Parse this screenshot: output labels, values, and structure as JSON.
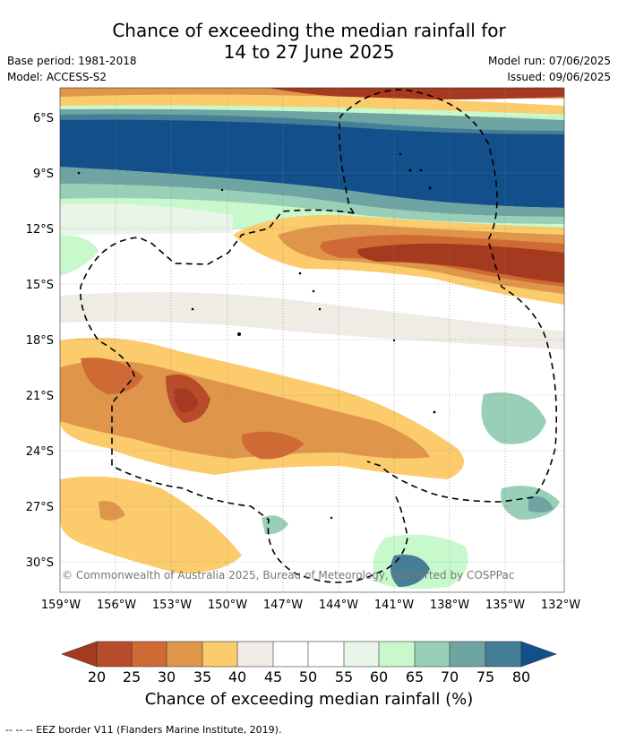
{
  "title": {
    "line1": "Chance of exceeding the median rainfall for",
    "line2": "14 to 27 June 2025"
  },
  "meta_left": {
    "base_period": "Base period: 1981-2018",
    "model": "Model: ACCESS-S2"
  },
  "meta_right": {
    "model_run": "Model run: 07/06/2025",
    "issued": "Issued: 09/06/2025"
  },
  "map": {
    "lat_labels": [
      "6°S",
      "9°S",
      "12°S",
      "15°S",
      "18°S",
      "21°S",
      "24°S",
      "27°S",
      "30°S"
    ],
    "lon_labels": [
      "159°W",
      "156°W",
      "153°W",
      "150°W",
      "147°W",
      "144°W",
      "141°W",
      "138°W",
      "135°W",
      "132°W"
    ],
    "copyright": "© Commonwealth of Australia 2025, Bureau of Meteorology, supported by COSPPac",
    "gridlines": true
  },
  "colorbar": {
    "title": "Chance of exceeding median rainfall (%)",
    "ticks": [
      "20",
      "25",
      "30",
      "35",
      "40",
      "45",
      "50",
      "55",
      "60",
      "65",
      "70",
      "75",
      "80"
    ],
    "colors": {
      "below_20": "#a63a20",
      "20_25": "#b84c2a",
      "25_30": "#d06a35",
      "30_35": "#e0964a",
      "35_40": "#fbcb6c",
      "40_45": "#efebe5",
      "45_50": "#ffffff",
      "50_55": "#ffffff",
      "55_60": "#e9f5e8",
      "60_65": "#c8f9cc",
      "65_70": "#99cfb6",
      "70_75": "#6ea4a1",
      "75_80": "#447e97",
      "above_80": "#134f8a"
    }
  },
  "footnote": "--  --  -- EEZ border V11 (Flanders Marine Institute, 2019)."
}
